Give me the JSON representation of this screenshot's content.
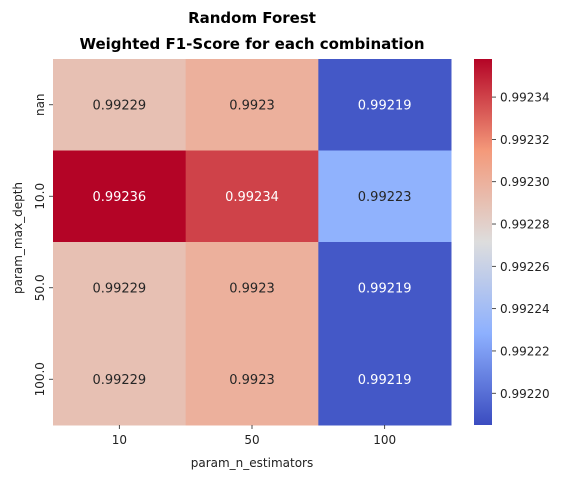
{
  "chart_data": {
    "type": "heatmap",
    "title_line1": "Random Forest",
    "title_line2": "Weighted F1-Score for each combination",
    "xlabel": "param_n_estimators",
    "ylabel": "param_max_depth",
    "x_categories": [
      "10",
      "50",
      "100"
    ],
    "y_categories": [
      "nan",
      "10.0",
      "50.0",
      "100.0"
    ],
    "values": [
      [
        0.99229,
        0.9923,
        0.99219
      ],
      [
        0.99236,
        0.99234,
        0.99223
      ],
      [
        0.99229,
        0.9923,
        0.99219
      ],
      [
        0.99229,
        0.9923,
        0.99219
      ]
    ],
    "cell_labels": [
      [
        "0.99229",
        "0.9923",
        "0.99219"
      ],
      [
        "0.99236",
        "0.99234",
        "0.99223"
      ],
      [
        "0.99229",
        "0.9923",
        "0.99219"
      ],
      [
        "0.99229",
        "0.9923",
        "0.99219"
      ]
    ],
    "colormap": "coolwarm",
    "vmin": 0.992185,
    "vmax": 0.992358,
    "colorbar_ticks": [
      0.9922,
      0.99222,
      0.99224,
      0.99226,
      0.99228,
      0.9923,
      0.99232,
      0.99234
    ],
    "colorbar_tick_labels": [
      "0.99220",
      "0.99222",
      "0.99224",
      "0.99226",
      "0.99228",
      "0.99230",
      "0.99232",
      "0.99234"
    ],
    "grid": false
  }
}
